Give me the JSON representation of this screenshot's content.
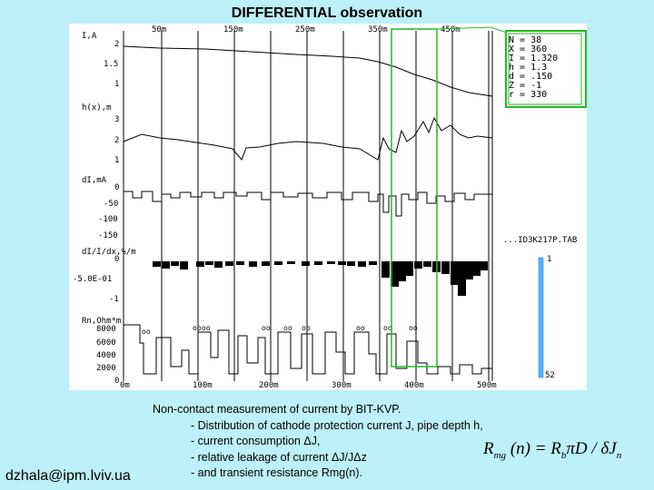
{
  "title": "DIFFERENTIAL  observation",
  "plot": {
    "top_labels": [
      "50m",
      "150m",
      "250m",
      "350m",
      "450m"
    ],
    "bottom_labels": [
      "0m",
      "100m",
      "200m",
      "300m",
      "400m",
      "500m"
    ],
    "panels": [
      {
        "label": "I,A",
        "ticks": [
          "2",
          "1.5",
          "1"
        ]
      },
      {
        "label": "h(x),m",
        "ticks": [
          "3",
          "2",
          "1"
        ]
      },
      {
        "label": "dI,mA",
        "ticks": [
          "0",
          "-50",
          "-100",
          "-150"
        ]
      },
      {
        "label": "dI/I/dx,%/m",
        "ticks": [
          "0",
          "-5.0E-01",
          "-1"
        ]
      },
      {
        "label": "Rn,Ohm*m",
        "ticks": [
          "8000",
          "6000",
          "4000",
          "2000",
          "0"
        ]
      }
    ],
    "params": [
      "N = 38",
      "X = 360",
      "I = 1.320",
      "h = 1.3",
      "d = .150",
      "Z = -1",
      "r = 330"
    ],
    "file_label": "...ID3K217P.TAB",
    "scale_top": "1",
    "scale_bottom": "52"
  },
  "email": "dzhala@ipm.lviv.ua",
  "caption": {
    "line1": "Non-contact measurement of current by  BIT-KVP.",
    "line2": "- Distribution of cathode protection current J, pipe depth h,",
    "line3": "- current consumption ΔJ,",
    "line4": "- relative leakage of current  ΔJ/JΔz",
    "line5": "- and transient resistance Rmg(n)."
  },
  "formula": {
    "lhs": "R",
    "lhs_sub": "mg",
    "arg": " (n) = R",
    "r_sub": "b",
    "rest": "πD / δJ",
    "j_sub": "n"
  }
}
